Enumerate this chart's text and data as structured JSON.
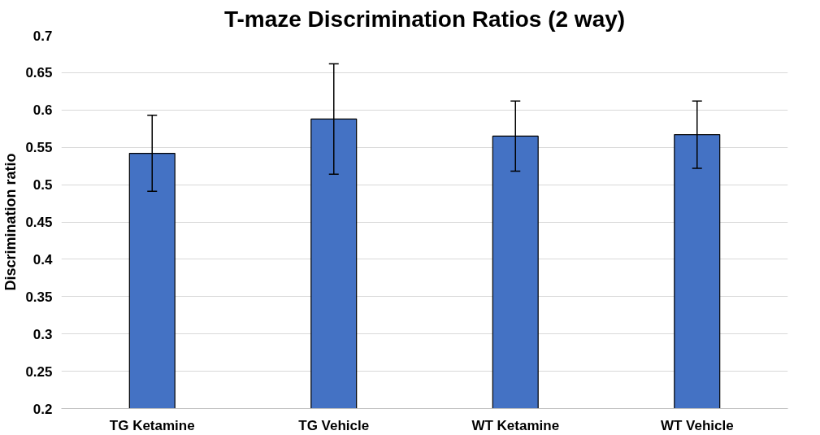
{
  "chart_data": {
    "type": "bar",
    "title": "T-maze Discrimination Ratios (2 way)",
    "ylabel": "Discrimination ratio",
    "categories": [
      "TG Ketamine",
      "TG Vehicle",
      "WT Ketamine",
      "WT Vehicle"
    ],
    "values": [
      0.542,
      0.588,
      0.565,
      0.567
    ],
    "errors": [
      0.051,
      0.074,
      0.047,
      0.045
    ],
    "color": "#4472c4",
    "ylim": [
      0.2,
      0.7
    ],
    "yticks": [
      0.2,
      0.25,
      0.3,
      0.35,
      0.4,
      0.45,
      0.5,
      0.55,
      0.6,
      0.65,
      0.7
    ],
    "grid": "y"
  }
}
